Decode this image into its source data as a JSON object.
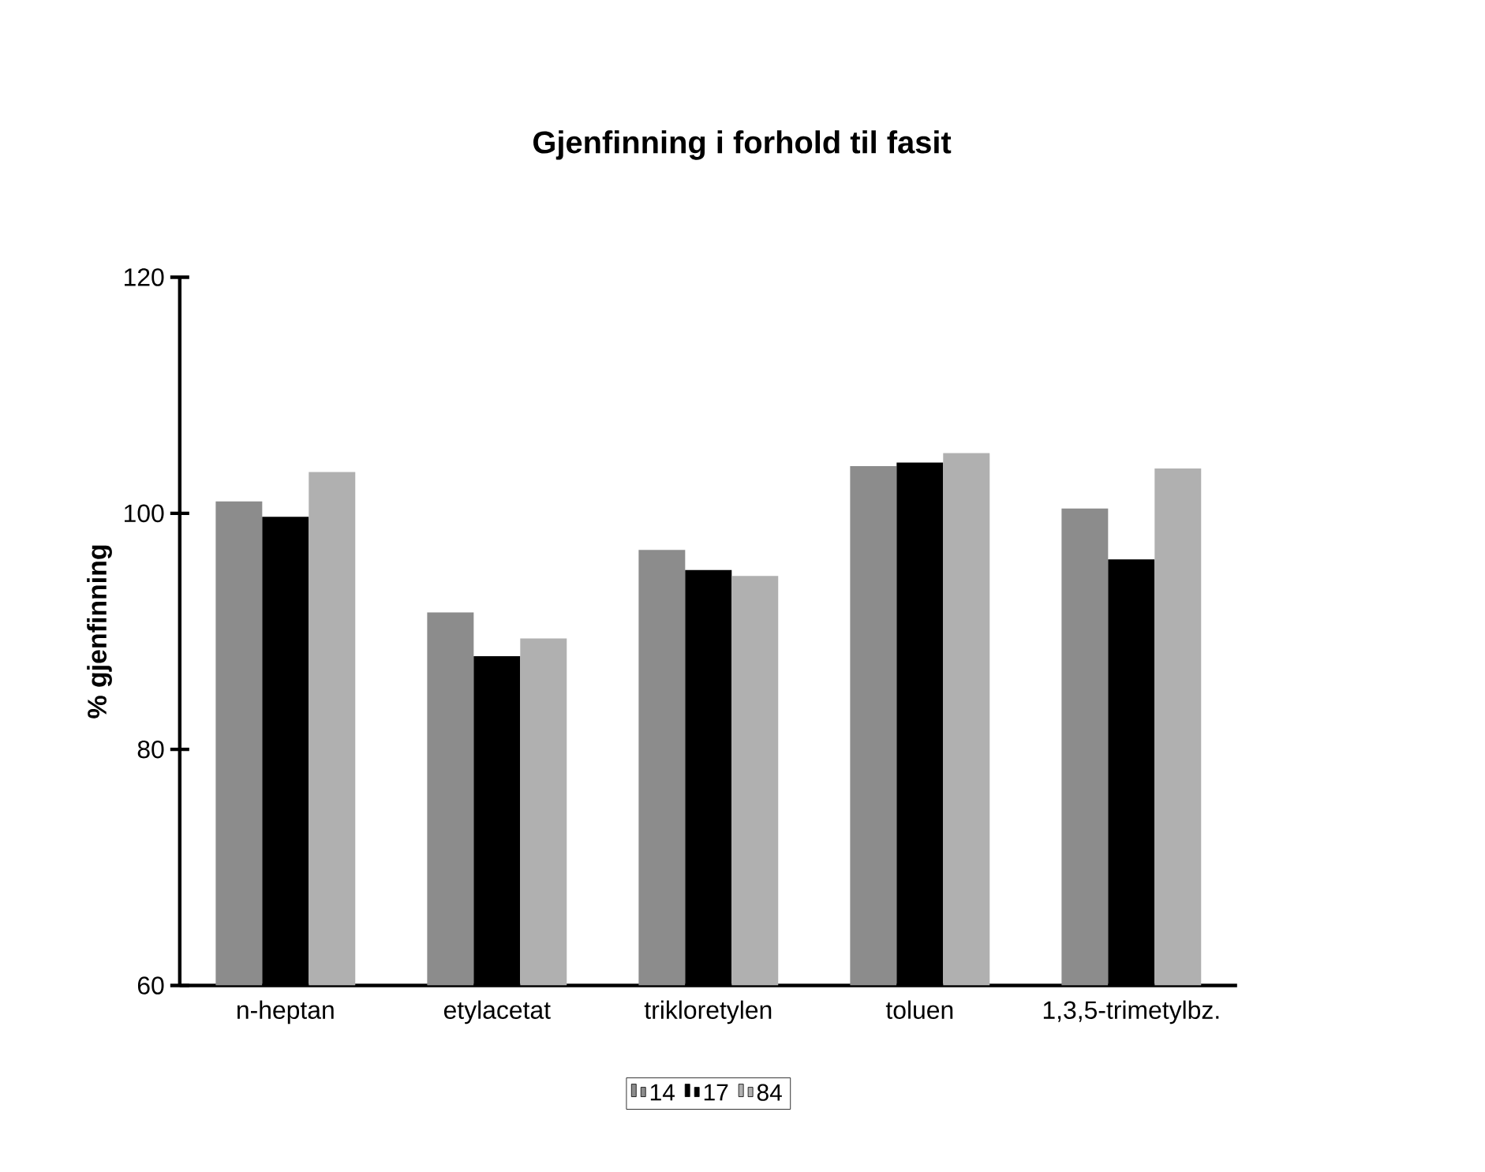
{
  "chart_data": {
    "type": "bar",
    "title": "Gjenfinning i forhold til fasit",
    "ylabel": "% gjenfinning",
    "categories": [
      "n-heptan",
      "etylacetat",
      "trikloretylen",
      "toluen",
      "1,3,5-trimetylbz."
    ],
    "series": [
      {
        "name": "14",
        "color": "#8c8c8c",
        "values": [
          101.0,
          91.6,
          96.9,
          104.0,
          100.4
        ]
      },
      {
        "name": "17",
        "color": "#000000",
        "values": [
          99.7,
          87.9,
          95.2,
          104.3,
          96.1
        ]
      },
      {
        "name": "84",
        "color": "#b0b0b0",
        "values": [
          103.5,
          89.4,
          94.7,
          105.1,
          103.8
        ]
      }
    ],
    "ylim": [
      60,
      120
    ],
    "yticks": [
      60,
      80,
      100,
      120
    ],
    "grid": false,
    "legend": "bottom"
  }
}
